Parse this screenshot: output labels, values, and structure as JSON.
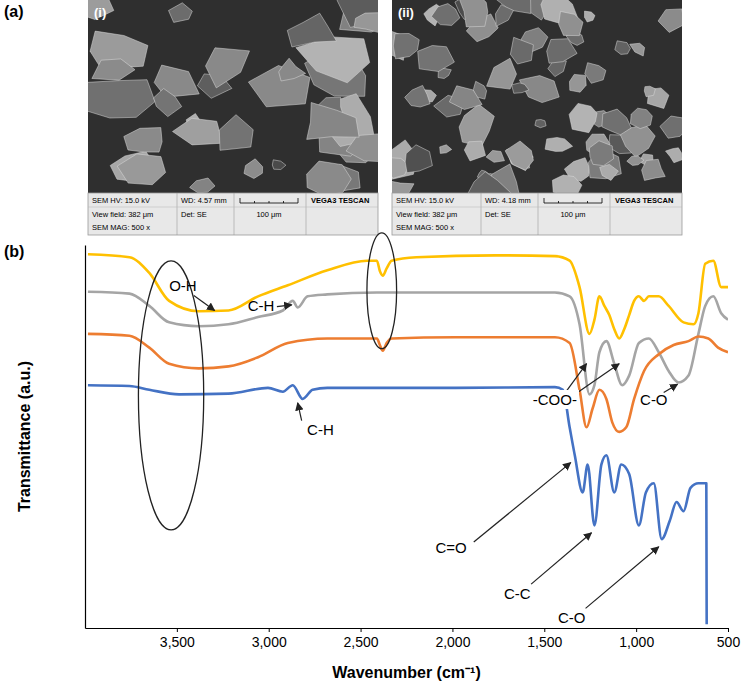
{
  "figure": {
    "panel_labels": [
      "(a)",
      "(b)"
    ],
    "images": [
      {
        "label": "(i)",
        "hv": "SEM HV: 15.0 kV",
        "wd": "WD: 4.57 mm",
        "view_field": "View field: 382 μm",
        "detector": "Det: SE",
        "magnification": "SEM MAG: 500 x",
        "scale_bar": "100 μm",
        "instrument": "VEGA3 TESCAN"
      },
      {
        "label": "(ii)",
        "hv": "SEM HV: 15.0 kV",
        "wd": "WD: 4.18 mm",
        "view_field": "View field: 382 μm",
        "detector": "Det: SE",
        "magnification": "SEM MAG: 500 x",
        "scale_bar": "100 μm",
        "instrument": "VEGA3 TESCAN"
      }
    ]
  },
  "chart_data": {
    "type": "line",
    "x_label": "Wavenumber (cm⁻¹)",
    "y_label": "Transmittance (a.u.)",
    "xlim": [
      4000,
      500
    ],
    "xticks": [
      {
        "value": 3500,
        "label": "3,500"
      },
      {
        "value": 3000,
        "label": "3,000"
      },
      {
        "value": 2500,
        "label": "2,500"
      },
      {
        "value": 2000,
        "label": "2,000"
      },
      {
        "value": 1500,
        "label": "1,500"
      },
      {
        "value": 1000,
        "label": "1,000"
      },
      500
    ],
    "ylim": [
      0,
      100
    ],
    "tick_labels": "x",
    "grid": false,
    "series": [
      {
        "color": "#ffc000",
        "x": [
          3984,
          3758,
          3650,
          3542,
          3381,
          3219,
          3058,
          2896,
          2681,
          2465,
          2411,
          2395,
          2379,
          2358,
          2331,
          2196,
          1765,
          1442,
          1362,
          1308,
          1254,
          1227,
          1200,
          1173,
          1146,
          1119,
          1092,
          1065,
          1038,
          1011,
          985,
          957,
          931,
          904,
          877,
          823,
          742,
          688,
          661,
          624,
          580,
          537,
          500
        ],
        "values": [
          97.6,
          96.8,
          92.7,
          85.4,
          82.7,
          82.9,
          86.6,
          89.5,
          93.4,
          95.9,
          95.9,
          93.2,
          92.0,
          93.9,
          95.9,
          96.8,
          97.3,
          97.1,
          95.9,
          89.0,
          76.8,
          80.5,
          86.6,
          84.1,
          81.7,
          78.0,
          75.6,
          78.0,
          81.7,
          85.4,
          86.6,
          85.4,
          86.6,
          86.6,
          86.6,
          84.1,
          79.8,
          79.3,
          82.2,
          95.1,
          95.9,
          89.0,
          89.0
        ]
      },
      {
        "color": "#a5a5a5",
        "x": [
          3984,
          3758,
          3650,
          3542,
          3381,
          3219,
          3058,
          2923,
          2869,
          2842,
          2788,
          2681,
          2411,
          1981,
          1442,
          1362,
          1308,
          1254,
          1227,
          1200,
          1162,
          1119,
          1076,
          1038,
          985,
          931,
          877,
          823,
          769,
          715,
          661,
          624,
          580,
          537,
          500
        ],
        "values": [
          87.8,
          87.3,
          84.1,
          79.8,
          78.8,
          79.3,
          81.2,
          82.9,
          85.4,
          83.7,
          86.6,
          87.1,
          87.6,
          87.6,
          87.6,
          86.6,
          79.3,
          61.0,
          63.4,
          72.0,
          74.9,
          69.0,
          63.4,
          65.9,
          74.4,
          75.6,
          72.0,
          67.1,
          64.1,
          65.9,
          76.8,
          84.1,
          86.6,
          82.2,
          80.5
        ]
      },
      {
        "color": "#ed7d31",
        "x": [
          3984,
          3758,
          3650,
          3542,
          3381,
          3219,
          3058,
          2896,
          2681,
          2411,
          2395,
          2379,
          2358,
          2331,
          1981,
          1442,
          1362,
          1308,
          1270,
          1237,
          1200,
          1162,
          1130,
          1092,
          1054,
          1011,
          957,
          877,
          796,
          715,
          661,
          607,
          554,
          500
        ],
        "values": [
          76.8,
          76.3,
          73.2,
          69.0,
          67.8,
          68.3,
          70.7,
          74.4,
          75.6,
          75.6,
          73.9,
          72.4,
          74.4,
          75.6,
          75.9,
          75.9,
          74.4,
          62.2,
          52.4,
          57.3,
          62.2,
          59.8,
          53.7,
          51.2,
          52.4,
          59.8,
          67.1,
          71.5,
          73.9,
          74.9,
          76.1,
          75.6,
          73.2,
          72.0
        ]
      },
      {
        "color": "#4472c4",
        "x": [
          3984,
          3758,
          3650,
          3488,
          3219,
          3004,
          2923,
          2869,
          2815,
          2761,
          2681,
          2411,
          1981,
          1442,
          1399,
          1362,
          1334,
          1291,
          1264,
          1227,
          1189,
          1162,
          1119,
          1081,
          1038,
          985,
          947,
          904,
          861,
          817,
          780,
          742,
          704,
          661,
          618,
          616
        ],
        "values": [
          63.4,
          63.2,
          62.2,
          61.0,
          61.2,
          62.7,
          61.7,
          63.4,
          59.8,
          62.2,
          62.7,
          62.7,
          62.7,
          62.9,
          62.2,
          52.4,
          45.1,
          35.4,
          42.7,
          26.8,
          42.7,
          45.1,
          35.4,
          42.7,
          40.2,
          26.8,
          35.4,
          37.8,
          23.2,
          28.0,
          32.9,
          30.5,
          36.6,
          37.8,
          37.8,
          1.0
        ]
      }
    ],
    "annotations": [
      "O-H",
      "C-H",
      "C-H",
      "-COO-",
      "C-O",
      "C=O",
      "C-C",
      "C-O"
    ]
  }
}
